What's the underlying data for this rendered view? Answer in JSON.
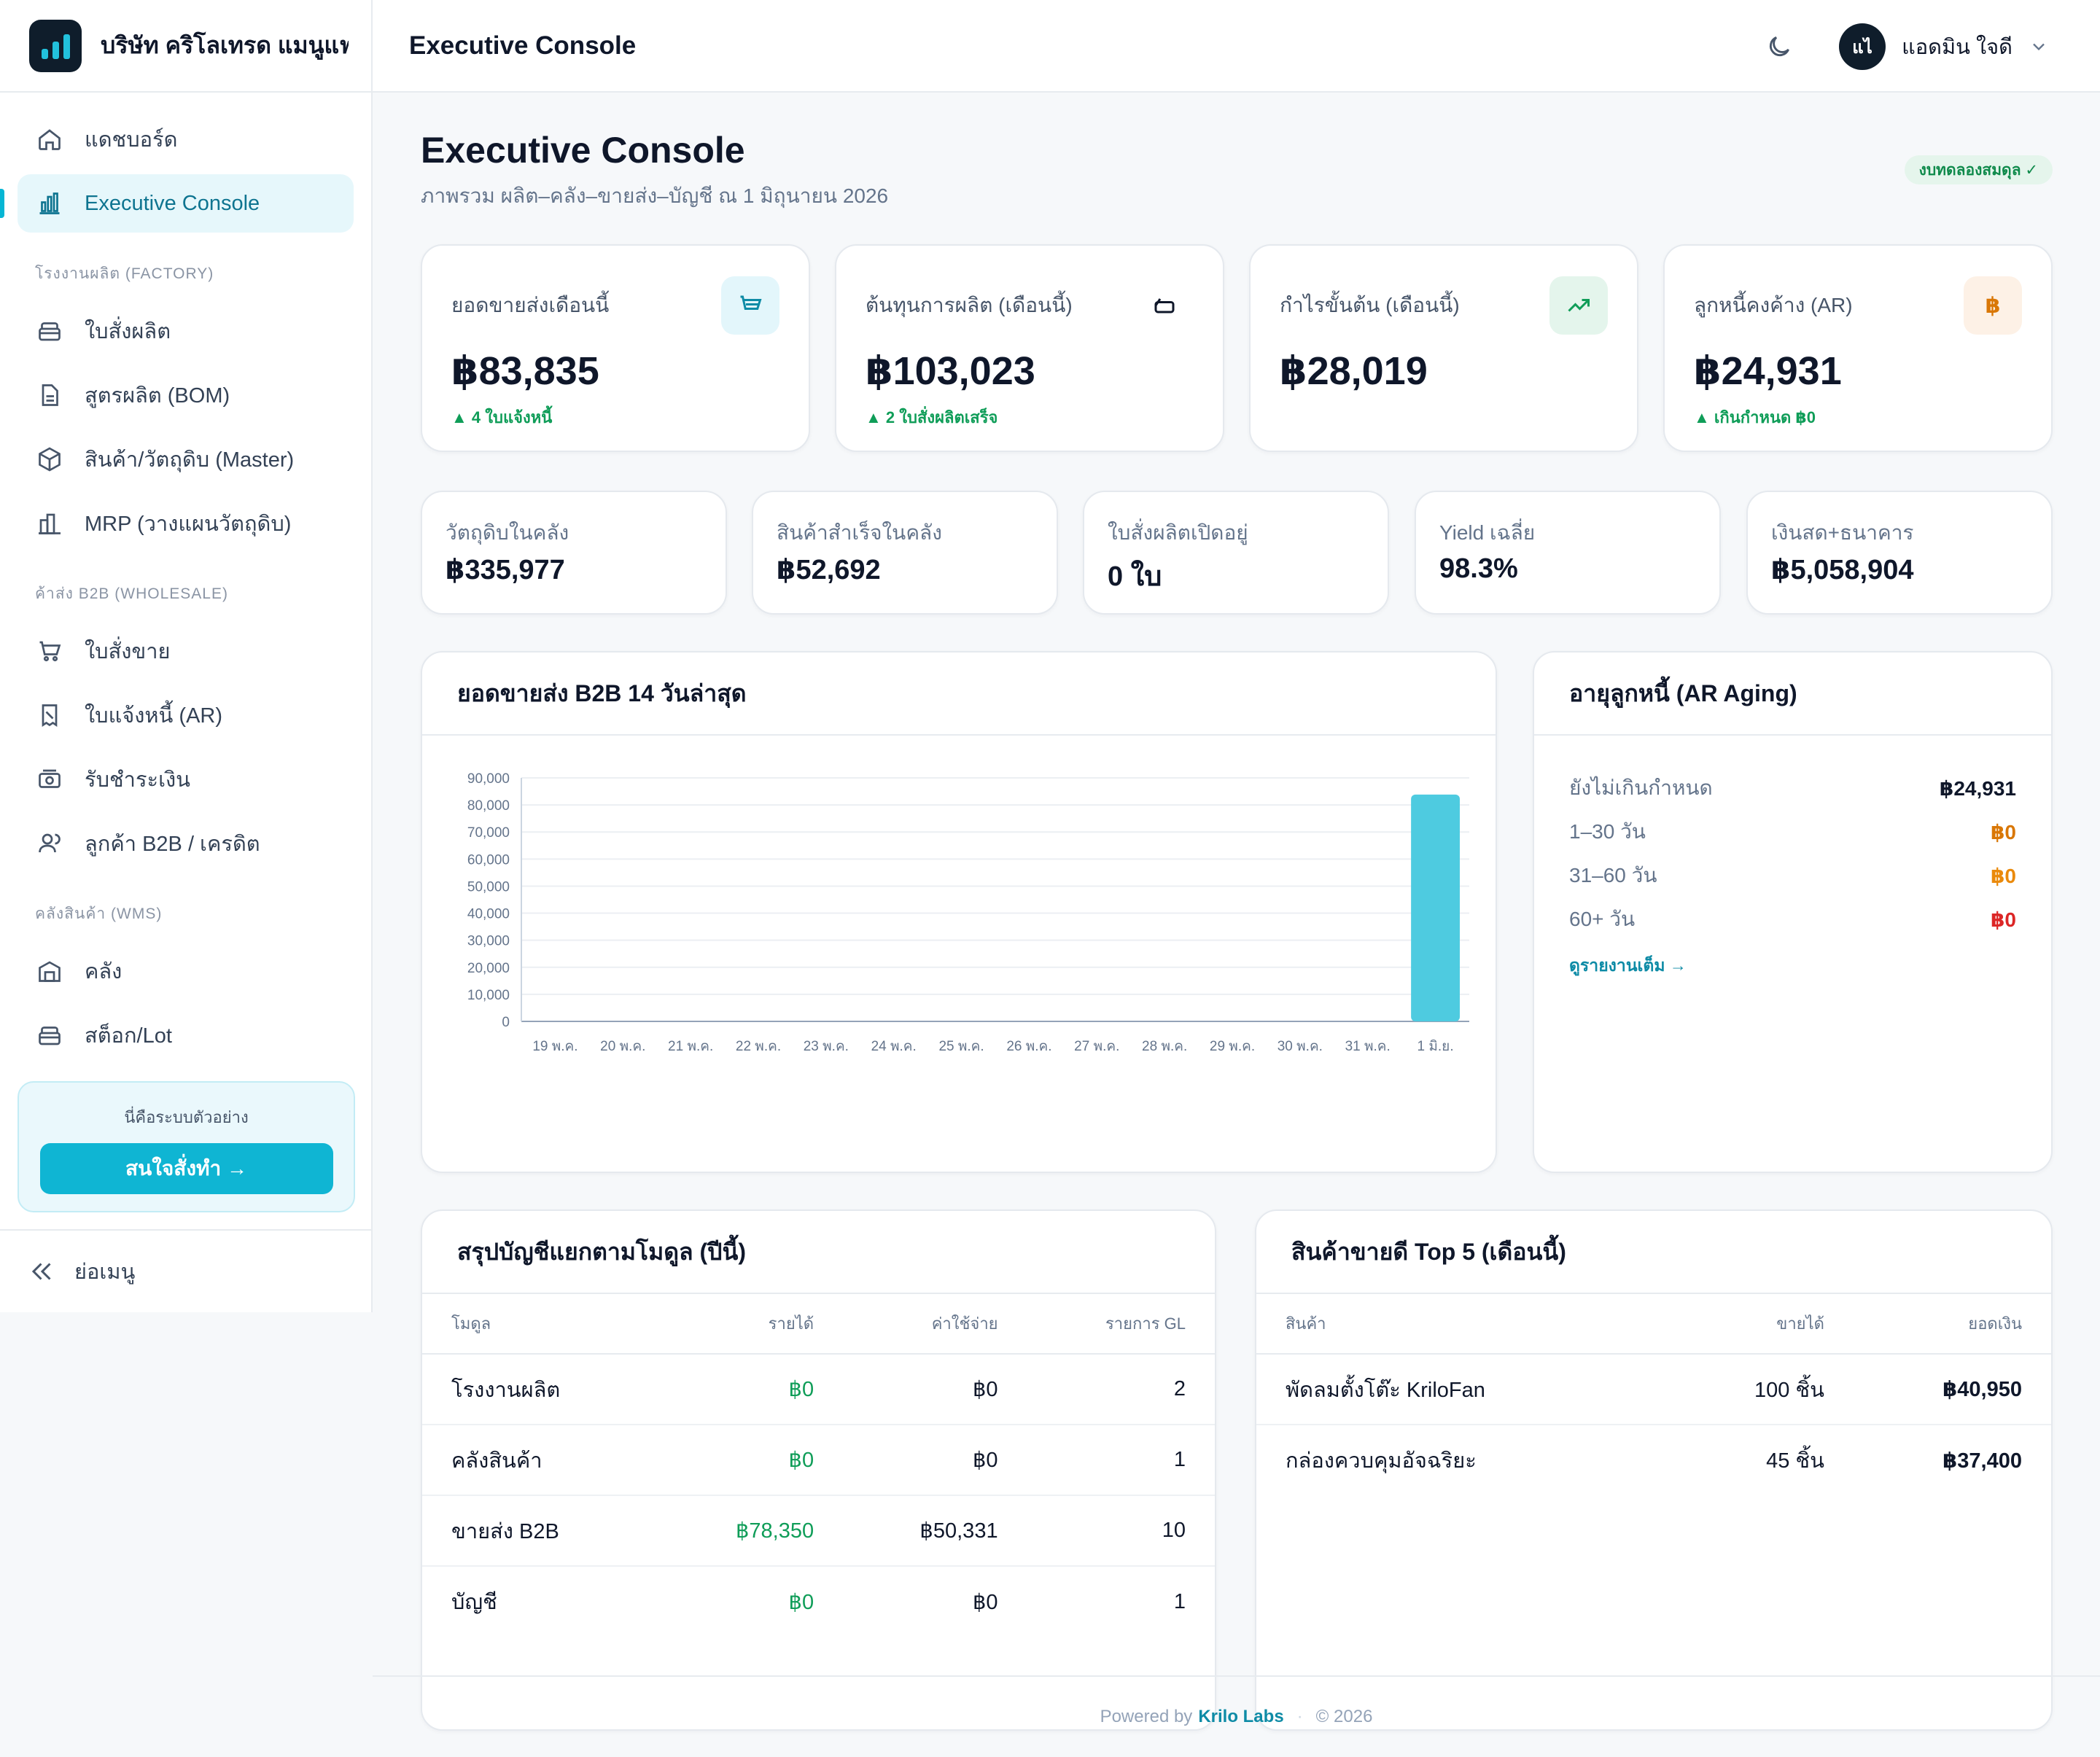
{
  "company_name": "บริษัท คริโลเทรด แมนูแฟ...",
  "topbar": {
    "title": "Executive Console",
    "user_initials": "แไ",
    "user_name": "แอดมิน ใจดี"
  },
  "sidebar": {
    "items_top": [
      {
        "label": "แดชบอร์ด",
        "icon": "home-icon"
      },
      {
        "label": "Executive Console",
        "icon": "bar-chart-icon",
        "active": true
      }
    ],
    "section_factory": "โรงงานผลิต (FACTORY)",
    "items_factory": [
      {
        "label": "ใบสั่งผลิต",
        "icon": "box-stack-icon"
      },
      {
        "label": "สูตรผลิต (BOM)",
        "icon": "document-icon"
      },
      {
        "label": "สินค้า/วัตถุดิบ (Master)",
        "icon": "cube-icon"
      },
      {
        "label": "MRP (วางแผนวัตถุดิบ)",
        "icon": "building-icon"
      }
    ],
    "section_wholesale": "ค้าส่ง B2B (WHOLESALE)",
    "items_wholesale": [
      {
        "label": "ใบสั่งขาย",
        "icon": "cart-icon"
      },
      {
        "label": "ใบแจ้งหนี้ (AR)",
        "icon": "receipt-icon"
      },
      {
        "label": "รับชำระเงิน",
        "icon": "cash-icon"
      },
      {
        "label": "ลูกค้า B2B / เครดิต",
        "icon": "users-icon"
      }
    ],
    "section_wms": "คลังสินค้า (WMS)",
    "items_wms": [
      {
        "label": "คลัง",
        "icon": "warehouse-icon"
      },
      {
        "label": "สต็อก/Lot",
        "icon": "box-stack-icon"
      }
    ],
    "demo_text": "นี่คือระบบตัวอย่าง",
    "demo_button": "สนใจสั่งทำ →",
    "collapse_label": "ย่อเมนู"
  },
  "page": {
    "title": "Executive Console",
    "subtitle": "ภาพรวม ผลิต–คลัง–ขายส่ง–บัญชี ณ 1 มิถุนายน 2026",
    "badge": "งบทดลองสมดุล ✓"
  },
  "kpis": [
    {
      "label": "ยอดขายส่งเดือนนี้",
      "value": "฿83,835",
      "note": "▲ 4 ใบแจ้งหนี้",
      "icon": "cart-icon",
      "icon_bg": "#e3f6fb",
      "icon_color": "#0e8ba6"
    },
    {
      "label": "ต้นทุนการผลิต (เดือนนี้)",
      "value": "฿103,023",
      "note": "▲ 2 ใบสั่งผลิตเสร็จ",
      "icon": "factory-icon",
      "icon_bg": "#ffffff",
      "icon_color": "#0f172a"
    },
    {
      "label": "กำไรขั้นต้น (เดือนนี้)",
      "value": "฿28,019",
      "note": "",
      "icon": "trend-up-icon",
      "icon_bg": "#e4f5ec",
      "icon_color": "#0f9d58"
    },
    {
      "label": "ลูกหนี้คงค้าง (AR)",
      "value": "฿24,931",
      "note": "▲ เกินกำหนด ฿0",
      "icon": "baht-icon",
      "icon_bg": "#fdf1e6",
      "icon_color": "#d97706"
    }
  ],
  "minis": [
    {
      "label": "วัตถุดิบในคลัง",
      "value": "฿335,977"
    },
    {
      "label": "สินค้าสำเร็จในคลัง",
      "value": "฿52,692"
    },
    {
      "label": "ใบสั่งผลิตเปิดอยู่",
      "value": "0 ใบ"
    },
    {
      "label": "Yield เฉลี่ย",
      "value": "98.3%"
    },
    {
      "label": "เงินสด+ธนาคาร",
      "value": "฿5,058,904"
    }
  ],
  "chart_data": {
    "type": "bar",
    "title": "ยอดขายส่ง B2B 14 วันล่าสุด",
    "categories": [
      "19 พ.ค.",
      "20 พ.ค.",
      "21 พ.ค.",
      "22 พ.ค.",
      "23 พ.ค.",
      "24 พ.ค.",
      "25 พ.ค.",
      "26 พ.ค.",
      "27 พ.ค.",
      "28 พ.ค.",
      "29 พ.ค.",
      "30 พ.ค.",
      "31 พ.ค.",
      "1 มิ.ย."
    ],
    "values": [
      0,
      0,
      0,
      0,
      0,
      0,
      0,
      0,
      0,
      0,
      0,
      0,
      0,
      83835
    ],
    "ylim": [
      0,
      90000
    ],
    "yticks": [
      "0",
      "10,000",
      "20,000",
      "30,000",
      "40,000",
      "50,000",
      "60,000",
      "70,000",
      "80,000",
      "90,000"
    ],
    "grid": true,
    "bar_color": "#4ecbe0"
  },
  "ar_aging": {
    "title": "อายุลูกหนี้ (AR Aging)",
    "rows": [
      {
        "label": "ยังไม่เกินกำหนด",
        "value": "฿24,931",
        "color": "#0f172a"
      },
      {
        "label": "1–30 วัน",
        "value": "฿0",
        "color": "#d97706"
      },
      {
        "label": "31–60 วัน",
        "value": "฿0",
        "color": "#ea8a0c"
      },
      {
        "label": "60+ วัน",
        "value": "฿0",
        "color": "#dc2626"
      }
    ],
    "link": "ดูรายงานเต็ม →"
  },
  "modules": {
    "title": "สรุปบัญชีแยกตามโมดูล (ปีนี้)",
    "headers": [
      "โมดูล",
      "รายได้",
      "ค่าใช้จ่าย",
      "รายการ GL"
    ],
    "rows": [
      [
        "โรงงานผลิต",
        "฿0",
        "฿0",
        "2"
      ],
      [
        "คลังสินค้า",
        "฿0",
        "฿0",
        "1"
      ],
      [
        "ขายส่ง B2B",
        "฿78,350",
        "฿50,331",
        "10"
      ],
      [
        "บัญชี",
        "฿0",
        "฿0",
        "1"
      ]
    ]
  },
  "top5": {
    "title": "สินค้าขายดี Top 5 (เดือนนี้)",
    "headers": [
      "สินค้า",
      "ขายได้",
      "ยอดเงิน"
    ],
    "rows": [
      [
        "พัดลมตั้งโต๊ะ KriloFan",
        "100 ชิ้น",
        "฿40,950"
      ],
      [
        "กล่องควบคุมอัจฉริยะ",
        "45 ชิ้น",
        "฿37,400"
      ]
    ]
  },
  "footer": {
    "powered": "Powered by",
    "brand": "Krilo Labs",
    "sep": "·",
    "year": "© 2026"
  }
}
